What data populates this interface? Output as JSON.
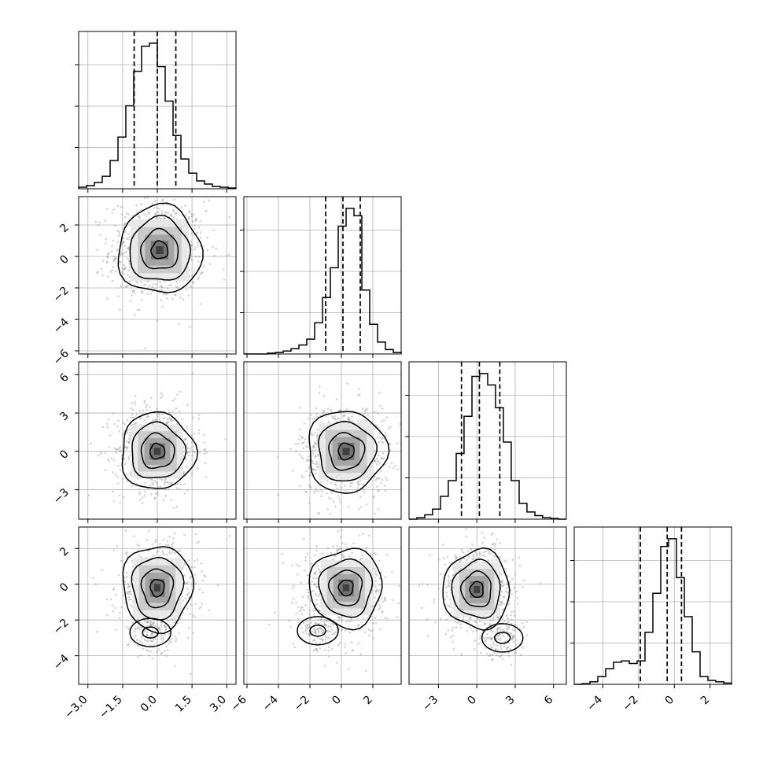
{
  "chart_data": {
    "type": "corner",
    "n_params": 4,
    "grid": true,
    "axes": [
      {
        "range": [
          -3.4,
          3.4
        ],
        "ticks": [
          -3.0,
          -1.5,
          0.0,
          1.5,
          3.0
        ],
        "tick_labels": [
          "−3.0",
          "−1.5",
          "0.0",
          "1.5",
          "3.0"
        ]
      },
      {
        "range": [
          -6.2,
          3.8
        ],
        "ticks": [
          -6,
          -4,
          -2,
          0,
          2
        ],
        "tick_labels": [
          "−6",
          "−4",
          "−2",
          "0",
          "2"
        ]
      },
      {
        "range": [
          -5.3,
          7.0
        ],
        "ticks": [
          -3,
          0,
          3,
          6
        ],
        "tick_labels": [
          "−3",
          "0",
          "3",
          "6"
        ]
      },
      {
        "range": [
          -5.6,
          3.2
        ],
        "ticks": [
          -4,
          -2,
          0,
          2
        ],
        "tick_labels": [
          "−4",
          "−2",
          "0",
          "2"
        ]
      }
    ],
    "histograms": [
      {
        "param": 0,
        "bin_edges": [
          -3.4,
          -3.06,
          -2.72,
          -2.38,
          -2.04,
          -1.7,
          -1.36,
          -1.02,
          -0.68,
          -0.34,
          0.0,
          0.34,
          0.68,
          1.02,
          1.36,
          1.7,
          2.04,
          2.38,
          2.72,
          3.06,
          3.4
        ],
        "counts": [
          0.01,
          0.02,
          0.04,
          0.08,
          0.18,
          0.33,
          0.53,
          0.75,
          0.91,
          0.93,
          0.78,
          0.56,
          0.34,
          0.19,
          0.1,
          0.05,
          0.03,
          0.015,
          0.01,
          0.005
        ],
        "quantiles": [
          -1.0,
          0.0,
          0.8
        ]
      },
      {
        "param": 1,
        "bin_edges": [
          -6.2,
          -5.7,
          -5.2,
          -4.7,
          -4.2,
          -3.7,
          -3.2,
          -2.7,
          -2.2,
          -1.7,
          -1.2,
          -0.7,
          -0.2,
          0.3,
          0.8,
          1.3,
          1.8,
          2.3,
          2.8,
          3.3,
          3.8
        ],
        "counts": [
          0.0,
          0.0,
          0.0,
          0.005,
          0.01,
          0.02,
          0.035,
          0.06,
          0.1,
          0.21,
          0.38,
          0.58,
          0.86,
          0.98,
          0.93,
          0.43,
          0.2,
          0.08,
          0.03,
          0.01
        ],
        "quantiles": [
          -1.0,
          0.1,
          1.2
        ]
      },
      {
        "param": 2,
        "bin_edges": [
          -5.3,
          -4.69,
          -4.07,
          -3.46,
          -2.84,
          -2.23,
          -1.61,
          -1.0,
          -0.38,
          0.23,
          0.85,
          1.46,
          2.08,
          2.69,
          3.31,
          3.92,
          4.54,
          5.15,
          5.77,
          6.38,
          7.0
        ],
        "counts": [
          0.0,
          0.01,
          0.03,
          0.07,
          0.16,
          0.27,
          0.46,
          0.72,
          1.0,
          1.02,
          0.94,
          0.78,
          0.54,
          0.27,
          0.11,
          0.05,
          0.025,
          0.01,
          0.005,
          0.0
        ],
        "quantiles": [
          -1.2,
          0.2,
          1.8
        ]
      },
      {
        "param": 3,
        "bin_edges": [
          -5.6,
          -5.16,
          -4.72,
          -4.28,
          -3.84,
          -3.4,
          -2.96,
          -2.52,
          -2.08,
          -1.64,
          -1.2,
          -0.76,
          -0.32,
          0.12,
          0.56,
          1.0,
          1.44,
          1.88,
          2.32,
          2.76,
          3.2
        ],
        "counts": [
          0.0,
          0.005,
          0.02,
          0.06,
          0.12,
          0.17,
          0.18,
          0.16,
          0.18,
          0.4,
          0.7,
          1.06,
          1.12,
          0.82,
          0.52,
          0.25,
          0.06,
          0.03,
          0.02,
          0.01
        ],
        "quantiles": [
          -1.9,
          -0.4,
          0.4
        ]
      }
    ],
    "panels": [
      {
        "x_param": 0,
        "y_param": 1,
        "center": [
          0.0,
          0.35
        ],
        "spread": [
          0.9,
          1.4
        ],
        "peak": [
          0.1,
          0.4
        ]
      },
      {
        "x_param": 0,
        "y_param": 2,
        "center": [
          0.0,
          0.2
        ],
        "spread": [
          0.8,
          1.5
        ],
        "peak": [
          0.0,
          0.0
        ]
      },
      {
        "x_param": 1,
        "y_param": 2,
        "center": [
          0.25,
          0.0
        ],
        "spread": [
          1.25,
          1.6
        ],
        "peak": [
          0.3,
          0.0
        ]
      },
      {
        "x_param": 0,
        "y_param": 3,
        "center": [
          0.0,
          -0.3
        ],
        "spread": [
          0.75,
          1.2
        ],
        "peak": [
          0.0,
          -0.2
        ],
        "secondary": [
          -0.3,
          -2.7
        ]
      },
      {
        "x_param": 1,
        "y_param": 3,
        "center": [
          0.2,
          -0.4
        ],
        "spread": [
          1.15,
          1.1
        ],
        "peak": [
          0.3,
          -0.2
        ],
        "secondary": [
          -1.5,
          -2.6
        ]
      },
      {
        "x_param": 2,
        "y_param": 3,
        "center": [
          0.1,
          -0.4
        ],
        "spread": [
          1.3,
          1.1
        ],
        "peak": [
          0.0,
          -0.3
        ],
        "secondary": [
          2.0,
          -3.0
        ]
      }
    ]
  }
}
